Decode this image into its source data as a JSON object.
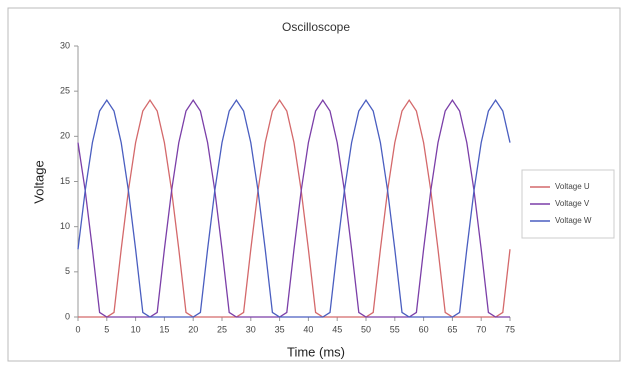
{
  "chart_data": {
    "type": "line",
    "title": "Oscilloscope",
    "x_label": "Time (ms)",
    "y_label": "Voltage",
    "x": [
      0,
      1.25,
      2.5,
      3.75,
      5,
      6.25,
      7.5,
      8.75,
      10,
      11.25,
      12.5,
      13.75,
      15,
      16.25,
      17.5,
      18.75,
      20,
      21.25,
      22.5,
      23.75,
      25,
      26.25,
      27.5,
      28.75,
      30,
      31.25,
      32.5,
      33.75,
      35,
      36.25,
      37.5,
      38.75,
      40,
      41.25,
      42.5,
      43.75,
      45,
      46.25,
      47.5,
      48.75,
      50,
      51.25,
      52.5,
      53.75,
      55,
      56.25,
      57.5,
      58.75,
      60,
      61.25,
      62.5,
      63.75,
      65,
      66.25,
      67.5,
      68.75,
      70,
      71.25,
      72.5,
      73.75,
      75
    ],
    "series": [
      {
        "name": "Voltage U",
        "color": "#d4696b",
        "values": [
          0,
          0,
          0,
          0,
          0,
          0.5,
          7.5,
          14,
          19.3,
          22.8,
          24,
          22.8,
          19.3,
          14,
          7.5,
          0.5,
          0,
          0,
          0,
          0,
          0,
          0,
          0,
          0.5,
          7.5,
          14,
          19.3,
          22.8,
          24,
          22.8,
          19.3,
          14,
          7.5,
          0.5,
          0,
          0,
          0,
          0,
          0,
          0,
          0,
          0.5,
          7.5,
          14,
          19.3,
          22.8,
          24,
          22.8,
          19.3,
          14,
          7.5,
          0.5,
          0,
          0,
          0,
          0,
          0,
          0,
          0,
          0.5,
          7.5
        ]
      },
      {
        "name": "Voltage V",
        "color": "#7b3fa8",
        "values": [
          19.3,
          14,
          7.5,
          0.5,
          0,
          0,
          0,
          0,
          0,
          0,
          0,
          0.5,
          7.5,
          14,
          19.3,
          22.8,
          24,
          22.8,
          19.3,
          14,
          7.5,
          0.5,
          0,
          0,
          0,
          0,
          0,
          0,
          0,
          0.5,
          7.5,
          14,
          19.3,
          22.8,
          24,
          22.8,
          19.3,
          14,
          7.5,
          0.5,
          0,
          0,
          0,
          0,
          0,
          0,
          0,
          0.5,
          7.5,
          14,
          19.3,
          22.8,
          24,
          22.8,
          19.3,
          14,
          7.5,
          0.5,
          0,
          0,
          0
        ]
      },
      {
        "name": "Voltage W",
        "color": "#4a5ec0",
        "values": [
          7.5,
          14,
          19.3,
          22.8,
          24,
          22.8,
          19.3,
          14,
          7.5,
          0.5,
          0,
          0,
          0,
          0,
          0,
          0,
          0,
          0.5,
          7.5,
          14,
          19.3,
          22.8,
          24,
          22.8,
          19.3,
          14,
          7.5,
          0.5,
          0,
          0,
          0,
          0,
          0,
          0,
          0,
          0.5,
          7.5,
          14,
          19.3,
          22.8,
          24,
          22.8,
          19.3,
          14,
          7.5,
          0.5,
          0,
          0,
          0,
          0,
          0,
          0,
          0,
          0.5,
          7.5,
          14,
          19.3,
          22.8,
          24,
          22.8,
          19.3
        ]
      }
    ],
    "xlim": [
      0,
      75
    ],
    "xticks": [
      0,
      5,
      10,
      15,
      20,
      25,
      30,
      35,
      40,
      45,
      50,
      55,
      60,
      65,
      70,
      75
    ],
    "ylim": [
      0,
      30
    ],
    "yticks": [
      0,
      5,
      10,
      15,
      20,
      25,
      30
    ],
    "grid": false,
    "legend": "right"
  }
}
